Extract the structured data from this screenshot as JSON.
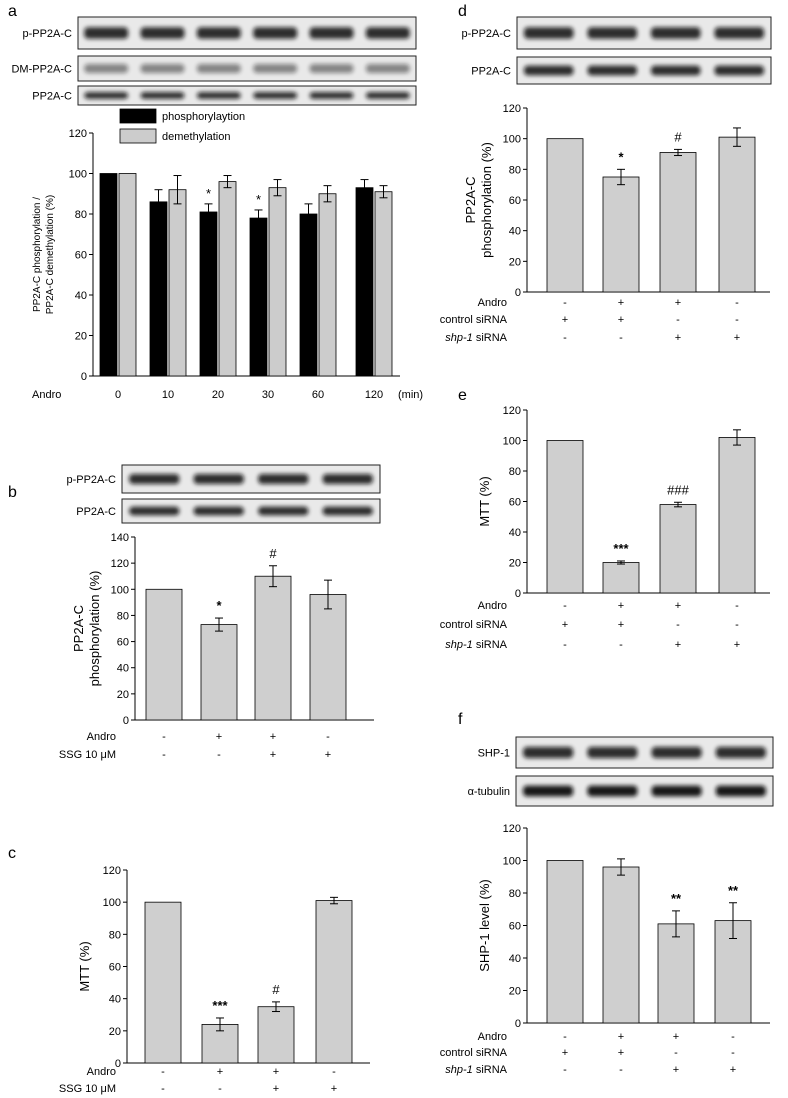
{
  "panels": [
    {
      "id": "a",
      "letter": "a",
      "blot_labels": [
        "p-PP2A-C",
        "DM-PP2A-C",
        "PP2A-C"
      ],
      "blot_lanes": 6,
      "chart_data": {
        "type": "bar",
        "ylabel": [
          "PP2A-C phosphorylation /",
          "PP2A-C demethylation (%)"
        ],
        "ylim": [
          0,
          120
        ],
        "yticks": [
          0,
          20,
          40,
          60,
          80,
          100,
          120
        ],
        "legend": [
          "phosphorylaytion",
          "demethylation"
        ],
        "series": [
          {
            "name": "phosphorylaytion",
            "values": [
              100,
              86,
              81,
              78,
              80,
              93
            ],
            "errors": [
              0,
              6,
              4,
              4,
              5,
              4
            ],
            "sig": [
              "",
              "",
              "*",
              "*",
              "",
              ""
            ],
            "color": "#000000"
          },
          {
            "name": "demethylation",
            "values": [
              100,
              92,
              96,
              93,
              90,
              91
            ],
            "errors": [
              0,
              7,
              3,
              4,
              4,
              3
            ],
            "sig": [
              "",
              "",
              "",
              "",
              "",
              ""
            ],
            "color": "#cccccc"
          }
        ],
        "treat_label": "Andro",
        "categories": [
          "0",
          "10",
          "20",
          "30",
          "60",
          "120"
        ],
        "unit": "(min)"
      }
    },
    {
      "id": "b",
      "letter": "b",
      "blot_labels": [
        "p-PP2A-C",
        "PP2A-C"
      ],
      "blot_lanes": 4,
      "chart_data": {
        "type": "bar",
        "ylabel": [
          "PP2A-C",
          "phosphorylation (%)"
        ],
        "ylim": [
          0,
          140
        ],
        "yticks": [
          0,
          20,
          40,
          60,
          80,
          100,
          120,
          140
        ],
        "values": [
          100,
          73,
          110,
          96
        ],
        "errors": [
          0,
          5,
          8,
          11
        ],
        "sig": [
          "",
          "*",
          "#",
          ""
        ],
        "rows": [
          {
            "label": "Andro",
            "italic": false,
            "signs": [
              "-",
              "+",
              "+",
              "-"
            ]
          },
          {
            "label": "SSG 10 μM",
            "italic": false,
            "signs": [
              "-",
              "-",
              "+",
              "+"
            ]
          }
        ]
      }
    },
    {
      "id": "c",
      "letter": "c",
      "chart_data": {
        "type": "bar",
        "ylabel": [
          "MTT (%)"
        ],
        "ylim": [
          0,
          120
        ],
        "yticks": [
          0,
          20,
          40,
          60,
          80,
          100,
          120
        ],
        "values": [
          100,
          24,
          35,
          101
        ],
        "errors": [
          0,
          4,
          3,
          2
        ],
        "sig": [
          "",
          "***",
          "#",
          ""
        ],
        "rows": [
          {
            "label": "Andro",
            "italic": false,
            "signs": [
              "-",
              "+",
              "+",
              "-"
            ]
          },
          {
            "label": "SSG 10 μM",
            "italic": false,
            "signs": [
              "-",
              "-",
              "+",
              "+"
            ]
          }
        ]
      }
    },
    {
      "id": "d",
      "letter": "d",
      "blot_labels": [
        "p-PP2A-C",
        "PP2A-C"
      ],
      "blot_lanes": 4,
      "chart_data": {
        "type": "bar",
        "ylabel": [
          "PP2A-C",
          "phosphorylation (%)"
        ],
        "ylim": [
          0,
          120
        ],
        "yticks": [
          0,
          20,
          40,
          60,
          80,
          100,
          120
        ],
        "values": [
          100,
          75,
          91,
          101
        ],
        "errors": [
          0,
          5,
          2,
          6
        ],
        "sig": [
          "",
          "*",
          "#",
          ""
        ],
        "rows": [
          {
            "label": "Andro",
            "italic": false,
            "signs": [
              "-",
              "+",
              "+",
              "-"
            ]
          },
          {
            "label": "control siRNA",
            "italic": false,
            "signs": [
              "+",
              "+",
              "-",
              "-"
            ]
          },
          {
            "label_it": "shp-1",
            "label_rest": " siRNA",
            "signs": [
              "-",
              "-",
              "+",
              "+"
            ]
          }
        ]
      }
    },
    {
      "id": "e",
      "letter": "e",
      "chart_data": {
        "type": "bar",
        "ylabel": [
          "MTT (%)"
        ],
        "ylim": [
          0,
          120
        ],
        "yticks": [
          0,
          20,
          40,
          60,
          80,
          100,
          120
        ],
        "values": [
          100,
          20,
          58,
          102
        ],
        "errors": [
          0,
          1,
          1.5,
          5
        ],
        "sig": [
          "",
          "***",
          "###",
          ""
        ],
        "rows": [
          {
            "label": "Andro",
            "italic": false,
            "signs": [
              "-",
              "+",
              "+",
              "-"
            ]
          },
          {
            "label": "control siRNA",
            "italic": false,
            "signs": [
              "+",
              "+",
              "-",
              "-"
            ]
          },
          {
            "label_it": "shp-1",
            "label_rest": " siRNA",
            "signs": [
              "-",
              "-",
              "+",
              "+"
            ]
          }
        ]
      }
    },
    {
      "id": "f",
      "letter": "f",
      "blot_labels": [
        "SHP-1",
        "α-tubulin"
      ],
      "blot_lanes": 4,
      "chart_data": {
        "type": "bar",
        "ylabel": [
          "SHP-1 level (%)"
        ],
        "ylim": [
          0,
          120
        ],
        "yticks": [
          0,
          20,
          40,
          60,
          80,
          100,
          120
        ],
        "values": [
          100,
          96,
          61,
          63
        ],
        "errors": [
          0,
          5,
          8,
          11
        ],
        "sig": [
          "",
          "",
          "**",
          "**"
        ],
        "rows": [
          {
            "label": "Andro",
            "italic": false,
            "signs": [
              "-",
              "+",
              "+",
              "-"
            ]
          },
          {
            "label": "control siRNA",
            "italic": false,
            "signs": [
              "+",
              "+",
              "-",
              "-"
            ]
          },
          {
            "label_it": "shp-1",
            "label_rest": " siRNA",
            "signs": [
              "-",
              "-",
              "+",
              "+"
            ]
          }
        ]
      }
    }
  ]
}
